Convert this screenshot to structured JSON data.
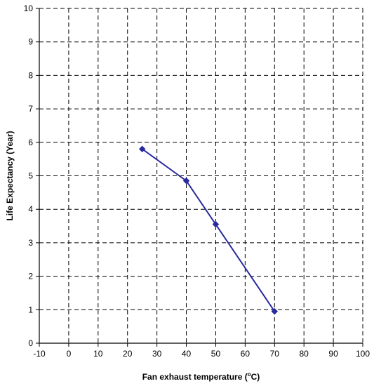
{
  "chart_data": {
    "type": "line",
    "title": "",
    "xlabel_parts": {
      "before": "Fan exhaust temperature (",
      "sup": "o",
      "after": "C)"
    },
    "ylabel": "Life Expectancy (Year)",
    "xlim": [
      -10,
      100
    ],
    "ylim": [
      0,
      10
    ],
    "x_ticks": [
      -10,
      0,
      10,
      20,
      30,
      40,
      50,
      60,
      70,
      80,
      90,
      100
    ],
    "y_ticks": [
      0,
      1,
      2,
      3,
      4,
      5,
      6,
      7,
      8,
      9,
      10
    ],
    "grid": true,
    "grid_style": "dashed",
    "series": [
      {
        "color": "#2a2aa0",
        "marker": "diamond",
        "points": [
          {
            "x": 25,
            "y": 5.8
          },
          {
            "x": 40,
            "y": 4.85
          },
          {
            "x": 50,
            "y": 3.55
          },
          {
            "x": 70,
            "y": 0.95
          }
        ]
      }
    ]
  }
}
